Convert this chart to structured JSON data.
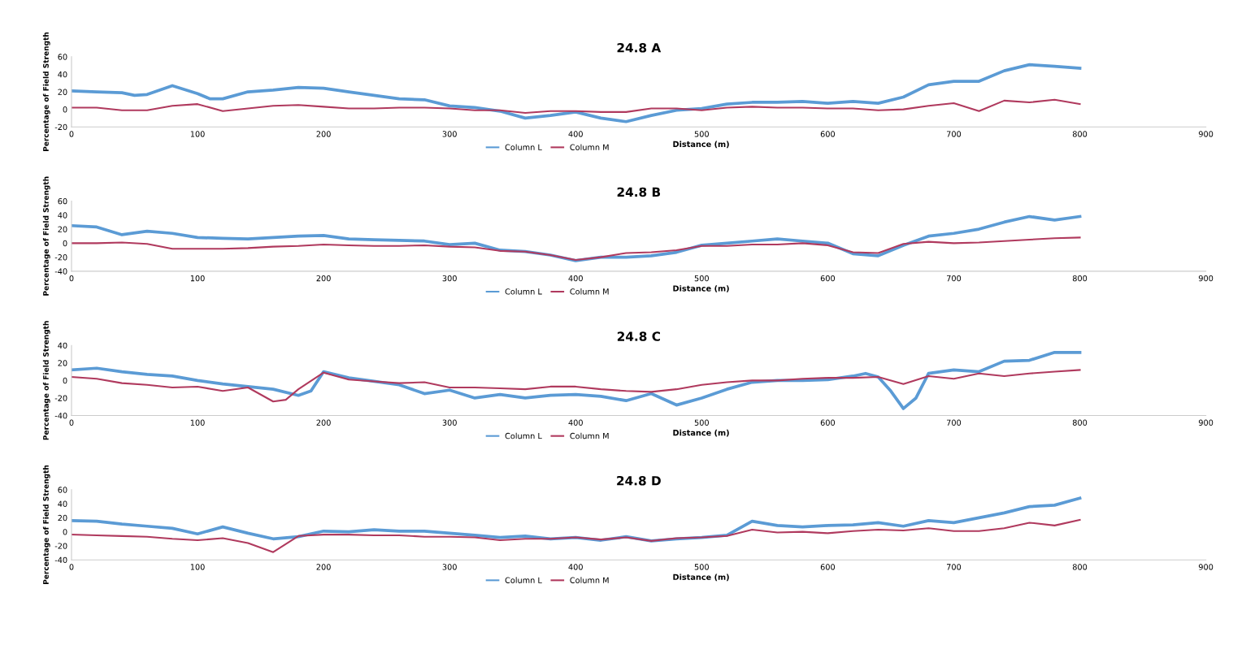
{
  "chart_data": [
    {
      "type": "line",
      "title": "24.8 A",
      "xlabel": "Distance (m)",
      "ylabel": "Percentage of Field Strength",
      "xlim": [
        0,
        900
      ],
      "xticks": [
        0,
        100,
        200,
        300,
        400,
        500,
        600,
        700,
        800,
        900
      ],
      "ylim": [
        -20,
        60
      ],
      "yticks": [
        -20,
        0,
        20,
        40,
        60
      ],
      "grid": false,
      "legend": "bottom",
      "series": [
        {
          "name": "Column L",
          "color": "#5b9bd5",
          "x": [
            0,
            20,
            40,
            50,
            60,
            80,
            100,
            110,
            120,
            140,
            160,
            180,
            200,
            220,
            240,
            260,
            280,
            300,
            320,
            340,
            360,
            380,
            400,
            420,
            440,
            460,
            480,
            500,
            520,
            540,
            560,
            580,
            600,
            620,
            640,
            660,
            680,
            700,
            720,
            740,
            760,
            780,
            800
          ],
          "values": [
            21,
            20,
            19,
            16,
            17,
            27,
            18,
            12,
            12,
            20,
            22,
            25,
            24,
            20,
            16,
            12,
            11,
            4,
            2,
            -2,
            -10,
            -7,
            -3,
            -10,
            -14,
            -7,
            -1,
            1,
            6,
            8,
            8,
            9,
            7,
            9,
            7,
            14,
            28,
            32,
            32,
            44,
            51,
            49,
            47
          ]
        },
        {
          "name": "Column M",
          "color": "#b03a5e",
          "x": [
            0,
            20,
            40,
            60,
            80,
            100,
            120,
            140,
            160,
            180,
            200,
            220,
            240,
            260,
            280,
            300,
            320,
            340,
            360,
            380,
            400,
            420,
            440,
            460,
            480,
            500,
            520,
            540,
            560,
            580,
            600,
            620,
            640,
            660,
            680,
            700,
            720,
            740,
            760,
            780,
            800
          ],
          "values": [
            2,
            2,
            -1,
            -1,
            4,
            6,
            -2,
            1,
            4,
            5,
            3,
            1,
            1,
            2,
            2,
            1,
            -1,
            -1,
            -4,
            -2,
            -2,
            -3,
            -3,
            1,
            1,
            -1,
            2,
            3,
            2,
            2,
            1,
            1,
            -1,
            0,
            4,
            7,
            -2,
            10,
            8,
            11,
            6
          ]
        }
      ]
    },
    {
      "type": "line",
      "title": "24.8 B",
      "xlabel": "Distance (m)",
      "ylabel": "Percentage of Field Strength",
      "xlim": [
        0,
        900
      ],
      "xticks": [
        0,
        100,
        200,
        300,
        400,
        500,
        600,
        700,
        800,
        900
      ],
      "ylim": [
        -40,
        60
      ],
      "yticks": [
        -40,
        -20,
        0,
        20,
        40,
        60
      ],
      "grid": false,
      "legend": "bottom",
      "series": [
        {
          "name": "Column L",
          "color": "#5b9bd5",
          "x": [
            0,
            20,
            40,
            60,
            80,
            100,
            120,
            140,
            160,
            180,
            200,
            220,
            240,
            260,
            280,
            300,
            320,
            340,
            360,
            380,
            400,
            420,
            440,
            460,
            480,
            500,
            520,
            540,
            560,
            580,
            600,
            620,
            640,
            660,
            680,
            700,
            720,
            740,
            760,
            780,
            800
          ],
          "values": [
            25,
            23,
            12,
            17,
            14,
            8,
            7,
            6,
            8,
            10,
            11,
            6,
            5,
            4,
            3,
            -2,
            0,
            -10,
            -12,
            -17,
            -25,
            -20,
            -20,
            -18,
            -13,
            -3,
            0,
            3,
            6,
            3,
            0,
            -15,
            -18,
            -3,
            10,
            14,
            20,
            30,
            38,
            33,
            38
          ]
        },
        {
          "name": "Column M",
          "color": "#b03a5e",
          "x": [
            0,
            20,
            40,
            60,
            80,
            100,
            120,
            140,
            160,
            180,
            200,
            220,
            240,
            260,
            280,
            300,
            320,
            340,
            360,
            380,
            400,
            420,
            440,
            460,
            480,
            500,
            520,
            540,
            560,
            580,
            600,
            620,
            640,
            660,
            680,
            700,
            720,
            740,
            760,
            780,
            800
          ],
          "values": [
            0,
            0,
            1,
            -1,
            -8,
            -8,
            -8,
            -7,
            -5,
            -4,
            -2,
            -3,
            -4,
            -4,
            -3,
            -5,
            -6,
            -11,
            -12,
            -17,
            -24,
            -20,
            -14,
            -13,
            -10,
            -4,
            -4,
            -2,
            -2,
            0,
            -3,
            -13,
            -14,
            -1,
            2,
            0,
            1,
            3,
            5,
            7,
            8
          ]
        }
      ]
    },
    {
      "type": "line",
      "title": "24.8 C",
      "xlabel": "Distance (m)",
      "ylabel": "Percentage of Field Strength",
      "xlim": [
        0,
        900
      ],
      "xticks": [
        0,
        100,
        200,
        300,
        400,
        500,
        600,
        700,
        800,
        900
      ],
      "ylim": [
        -40,
        40
      ],
      "yticks": [
        -40,
        -20,
        0,
        20,
        40
      ],
      "grid": false,
      "legend": "bottom",
      "series": [
        {
          "name": "Column L",
          "color": "#5b9bd5",
          "x": [
            0,
            20,
            40,
            60,
            80,
            100,
            120,
            140,
            160,
            180,
            190,
            200,
            220,
            240,
            260,
            280,
            300,
            320,
            340,
            360,
            380,
            400,
            420,
            440,
            460,
            480,
            500,
            520,
            540,
            560,
            580,
            600,
            620,
            630,
            640,
            650,
            660,
            670,
            680,
            700,
            720,
            740,
            760,
            780,
            800
          ],
          "values": [
            12,
            14,
            10,
            7,
            5,
            0,
            -4,
            -7,
            -10,
            -17,
            -12,
            10,
            3,
            -1,
            -5,
            -15,
            -11,
            -20,
            -16,
            -20,
            -17,
            -16,
            -18,
            -23,
            -15,
            -28,
            -20,
            -10,
            -2,
            0,
            0,
            1,
            5,
            8,
            4,
            -12,
            -32,
            -20,
            8,
            12,
            10,
            22,
            23,
            32,
            32
          ]
        },
        {
          "name": "Column M",
          "color": "#b03a5e",
          "x": [
            0,
            20,
            40,
            60,
            80,
            100,
            120,
            140,
            160,
            170,
            180,
            200,
            220,
            240,
            260,
            280,
            300,
            320,
            340,
            360,
            380,
            400,
            420,
            440,
            460,
            480,
            500,
            520,
            540,
            560,
            580,
            600,
            620,
            640,
            660,
            680,
            700,
            720,
            740,
            760,
            780,
            800
          ],
          "values": [
            4,
            2,
            -3,
            -5,
            -8,
            -7,
            -12,
            -8,
            -24,
            -22,
            -10,
            9,
            1,
            -1,
            -3,
            -2,
            -8,
            -8,
            -9,
            -10,
            -7,
            -7,
            -10,
            -12,
            -13,
            -10,
            -5,
            -2,
            0,
            0,
            2,
            3,
            3,
            4,
            -4,
            5,
            2,
            8,
            5,
            8,
            10,
            12
          ]
        }
      ]
    },
    {
      "type": "line",
      "title": "24.8 D",
      "xlabel": "Distance (m)",
      "ylabel": "Percentage of Field Strength",
      "xlim": [
        0,
        900
      ],
      "xticks": [
        0,
        100,
        200,
        300,
        400,
        500,
        600,
        700,
        800,
        900
      ],
      "ylim": [
        -40,
        60
      ],
      "yticks": [
        -40,
        -20,
        0,
        20,
        40,
        60
      ],
      "grid": false,
      "legend": "bottom",
      "series": [
        {
          "name": "Column L",
          "color": "#5b9bd5",
          "x": [
            0,
            20,
            40,
            60,
            80,
            100,
            120,
            140,
            160,
            180,
            200,
            220,
            240,
            260,
            280,
            300,
            320,
            340,
            360,
            380,
            400,
            420,
            440,
            460,
            480,
            500,
            520,
            540,
            560,
            580,
            600,
            620,
            640,
            660,
            680,
            700,
            720,
            740,
            760,
            780,
            800
          ],
          "values": [
            16,
            15,
            11,
            8,
            5,
            -3,
            7,
            -2,
            -10,
            -7,
            1,
            0,
            3,
            1,
            1,
            -2,
            -5,
            -8,
            -6,
            -10,
            -8,
            -12,
            -7,
            -13,
            -10,
            -8,
            -5,
            15,
            9,
            7,
            9,
            10,
            13,
            8,
            16,
            13,
            20,
            27,
            36,
            38,
            48
          ]
        },
        {
          "name": "Column M",
          "color": "#b03a5e",
          "x": [
            0,
            20,
            40,
            60,
            80,
            100,
            120,
            140,
            160,
            180,
            200,
            220,
            240,
            260,
            280,
            300,
            320,
            340,
            360,
            380,
            400,
            420,
            440,
            460,
            480,
            500,
            520,
            540,
            560,
            580,
            600,
            620,
            640,
            660,
            680,
            700,
            720,
            740,
            760,
            780,
            800
          ],
          "values": [
            -4,
            -5,
            -6,
            -7,
            -10,
            -12,
            -9,
            -16,
            -29,
            -6,
            -4,
            -4,
            -5,
            -5,
            -7,
            -7,
            -8,
            -12,
            -10,
            -10,
            -8,
            -11,
            -8,
            -13,
            -9,
            -8,
            -6,
            3,
            -1,
            0,
            -2,
            1,
            3,
            2,
            5,
            1,
            1,
            5,
            13,
            9,
            17
          ]
        }
      ]
    }
  ]
}
